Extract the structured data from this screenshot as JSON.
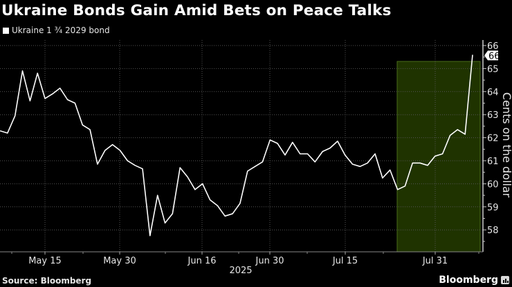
{
  "header": {
    "title": "Ukraine Bonds Gain Amid Bets on Peace Talks",
    "legend_label": "Ukraine 1 ¾  2029 bond"
  },
  "footer": {
    "source": "Source: Bloomberg",
    "brand": "Bloomberg"
  },
  "colors": {
    "background": "#000000",
    "line": "#ffffff",
    "highlight_fill": "#1f3300",
    "highlight_border": "#4a6b1a",
    "grid": "#555555",
    "axis": "#cccccc"
  },
  "chart_data": {
    "type": "line",
    "title": "Ukraine Bonds Gain Amid Bets on Peace Talks",
    "xlabel": "2025",
    "ylabel": "Cents on the dollar",
    "ylim": [
      57.1,
      66.4
    ],
    "yticks": [
      58,
      59,
      60,
      61,
      62,
      63,
      64,
      65,
      66
    ],
    "x_tick_labels": [
      "May 15",
      "May 30",
      "Jun 16",
      "Jun 30",
      "Jul 15",
      "Jul 31"
    ],
    "x_tick_year": "2025",
    "legend": [
      "Ukraine 1 ¾  2029 bond"
    ],
    "legend_position": "top-left",
    "grid": true,
    "last_value_label": "66",
    "highlight_region": {
      "from": "Jul 24",
      "to": "Aug 11",
      "description": "shaded green region at right"
    },
    "series": [
      {
        "name": "Ukraine 1 ¾  2029 bond",
        "values": [
          62.3,
          62.2,
          62.95,
          64.9,
          63.6,
          64.8,
          63.7,
          63.9,
          64.15,
          63.65,
          63.5,
          62.55,
          62.35,
          60.85,
          61.45,
          61.7,
          61.45,
          61.0,
          60.8,
          60.65,
          57.75,
          59.5,
          58.3,
          58.7,
          60.7,
          60.3,
          59.75,
          60.0,
          59.3,
          59.05,
          58.6,
          58.7,
          59.15,
          60.55,
          60.75,
          60.95,
          61.9,
          61.75,
          61.25,
          61.8,
          61.3,
          61.3,
          60.95,
          61.4,
          61.55,
          61.85,
          61.25,
          60.85,
          60.75,
          60.9,
          61.3,
          60.25,
          60.6,
          59.75,
          59.9,
          60.9,
          60.9,
          60.8,
          61.2,
          61.3,
          62.1,
          62.35,
          62.15,
          65.6
        ]
      }
    ]
  }
}
